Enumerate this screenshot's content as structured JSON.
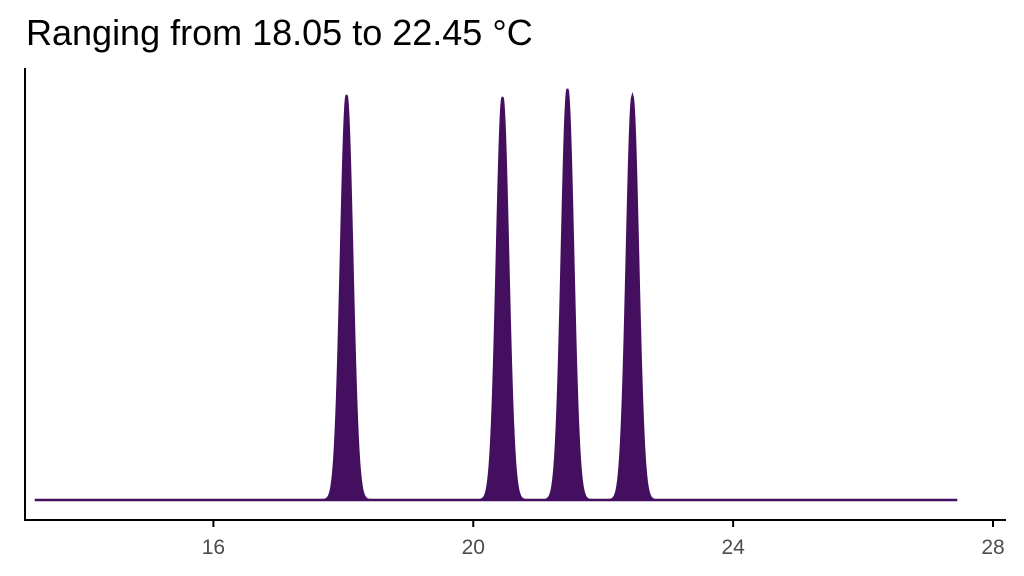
{
  "chart_data": {
    "type": "area",
    "title": "Ranging from 18.05 to 22.45 °C",
    "xlabel": "",
    "ylabel": "",
    "xlim": [
      13.1,
      28.2
    ],
    "x_ticks": [
      16,
      20,
      24,
      28
    ],
    "x_tick_labels": [
      "16",
      "20",
      "24",
      "28"
    ],
    "y_ticks": [],
    "curve_x_range": [
      13.25,
      27.45
    ],
    "grid": false,
    "legend": "none",
    "peaks": [
      {
        "center": 18.05,
        "height": 1.0,
        "sd": 0.09
      },
      {
        "center": 20.45,
        "height": 0.995,
        "sd": 0.09
      },
      {
        "center": 21.45,
        "height": 1.015,
        "sd": 0.09
      },
      {
        "center": 22.45,
        "height": 0.998,
        "sd": 0.09
      }
    ],
    "fill_color": "#440f5f",
    "line_color": "#440f5f"
  }
}
